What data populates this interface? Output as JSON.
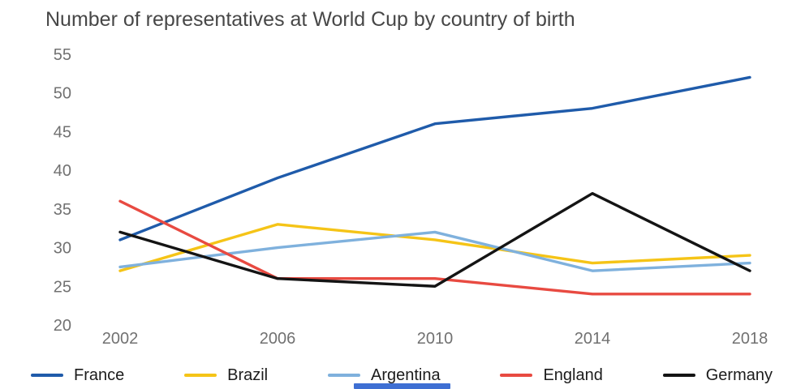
{
  "chart_data": {
    "type": "line",
    "title": "Number of representatives at World Cup by country of birth",
    "categories": [
      "2002",
      "2006",
      "2010",
      "2014",
      "2018"
    ],
    "x": [
      2002,
      2006,
      2010,
      2014,
      2018
    ],
    "series": [
      {
        "name": "France",
        "color": "#1f5baa",
        "values": [
          31,
          39,
          46,
          48,
          52
        ]
      },
      {
        "name": "Brazil",
        "color": "#f5c417",
        "values": [
          27,
          33,
          31,
          28,
          29
        ]
      },
      {
        "name": "Argentina",
        "color": "#7fb1dd",
        "values": [
          27.5,
          30,
          32,
          27,
          28
        ]
      },
      {
        "name": "England",
        "color": "#e84a41",
        "values": [
          36,
          26,
          26,
          24,
          24
        ]
      },
      {
        "name": "Germany",
        "color": "#141414",
        "values": [
          32,
          26,
          25,
          37,
          27
        ]
      }
    ],
    "yticks": [
      20,
      25,
      30,
      35,
      40,
      45,
      50,
      55
    ],
    "ylim": [
      20,
      55
    ],
    "xlabel": "",
    "ylabel": "",
    "grid": false,
    "legend_position": "bottom"
  },
  "theme": {
    "title_color": "#474747",
    "axis_label_color": "#717171",
    "legend_text_color": "#1c1c1c",
    "background": "#ffffff",
    "scroll_thumb_color": "#3e6fd3"
  }
}
